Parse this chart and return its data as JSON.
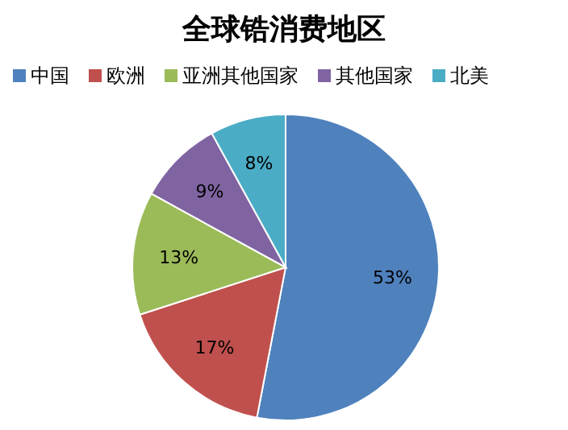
{
  "chart_data": {
    "type": "pie",
    "title": "全球锆消费地区",
    "categories": [
      "中国",
      "欧洲",
      "亚洲其他国家",
      "其他国家",
      "北美"
    ],
    "values": [
      53,
      17,
      13,
      9,
      8
    ],
    "value_labels": [
      "53%",
      "17%",
      "13%",
      "9%",
      "8%"
    ],
    "colors": [
      "#4f81bd",
      "#c0504d",
      "#9bbb59",
      "#8064a2",
      "#4bacc6"
    ],
    "legend": "top"
  }
}
